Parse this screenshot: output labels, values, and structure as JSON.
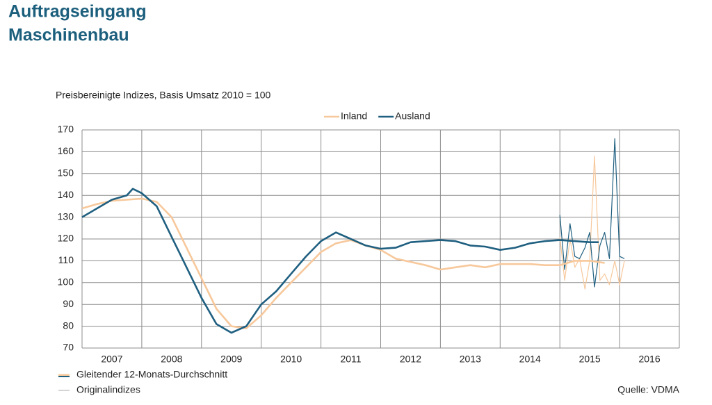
{
  "chart_data": {
    "type": "line",
    "title_lines": [
      "Auftragseingang",
      "Maschinenbau"
    ],
    "subtitle": "Preisbereinigte Indizes, Basis Umsatz 2010 = 100",
    "source": "Quelle: VDMA",
    "categories": [
      "2007",
      "2008",
      "2009",
      "2010",
      "2011",
      "2012",
      "2013",
      "2014",
      "2015",
      "2016"
    ],
    "xlim": [
      2007,
      2017
    ],
    "ylim": [
      70,
      170
    ],
    "yticks": [
      70,
      80,
      90,
      100,
      110,
      120,
      130,
      140,
      150,
      160,
      170
    ],
    "grid": true,
    "line_legend": [
      "Gleitender 12-Monats-Durchschnitt",
      "Originalindizes"
    ],
    "series": [
      {
        "name": "Inland",
        "color": "#f7c89b",
        "kind": "average",
        "x": [
          2007.0,
          2007.25,
          2007.5,
          2007.75,
          2008.0,
          2008.25,
          2008.5,
          2008.75,
          2009.0,
          2009.25,
          2009.5,
          2009.75,
          2010.0,
          2010.25,
          2010.5,
          2010.75,
          2011.0,
          2011.25,
          2011.5,
          2011.75,
          2012.0,
          2012.25,
          2012.5,
          2012.75,
          2013.0,
          2013.25,
          2013.5,
          2013.75,
          2014.0,
          2014.25,
          2014.5,
          2014.75,
          2015.0,
          2015.25,
          2015.5,
          2015.75
        ],
        "values": [
          134,
          136,
          137.5,
          138,
          138.5,
          137,
          130,
          116,
          102,
          88,
          80,
          79,
          85,
          93,
          100,
          107,
          114,
          118,
          119.5,
          117,
          115,
          111,
          109.5,
          108,
          106,
          107,
          108,
          107,
          108.5,
          108.5,
          108.5,
          108,
          108,
          110,
          110,
          109
        ]
      },
      {
        "name": "Ausland",
        "color": "#1f5f80",
        "kind": "average",
        "x": [
          2007.0,
          2007.25,
          2007.5,
          2007.75,
          2007.85,
          2008.0,
          2008.25,
          2008.5,
          2008.75,
          2009.0,
          2009.25,
          2009.5,
          2009.75,
          2010.0,
          2010.25,
          2010.5,
          2010.75,
          2011.0,
          2011.25,
          2011.5,
          2011.75,
          2012.0,
          2012.25,
          2012.5,
          2012.75,
          2013.0,
          2013.25,
          2013.5,
          2013.75,
          2014.0,
          2014.25,
          2014.5,
          2014.75,
          2015.0,
          2015.25,
          2015.5,
          2015.65
        ],
        "values": [
          130,
          134,
          138,
          140,
          143,
          141,
          135,
          121,
          107,
          93,
          81,
          77,
          80,
          90,
          96,
          104,
          112,
          119,
          123,
          120,
          117,
          115.5,
          116,
          118.5,
          119,
          119.5,
          119,
          117,
          116.5,
          115,
          116,
          118,
          119,
          119.5,
          119,
          118.5,
          118.5
        ]
      },
      {
        "color": "#f7c89b",
        "kind": "original",
        "x": [
          2015.0,
          2015.08,
          2015.17,
          2015.25,
          2015.33,
          2015.42,
          2015.5,
          2015.58,
          2015.67,
          2015.75,
          2015.83,
          2015.92,
          2016.0,
          2016.08
        ],
        "values": [
          121,
          101,
          120,
          107,
          111,
          97,
          110,
          158,
          101,
          104,
          99,
          110,
          99,
          110
        ]
      },
      {
        "color": "#1f5f80",
        "kind": "original",
        "x": [
          2015.0,
          2015.08,
          2015.17,
          2015.25,
          2015.33,
          2015.42,
          2015.5,
          2015.58,
          2015.67,
          2015.75,
          2015.83,
          2015.92,
          2016.0,
          2016.08
        ],
        "values": [
          131,
          106,
          127,
          112,
          111,
          116,
          123,
          98,
          117,
          123,
          111,
          166,
          112,
          111
        ]
      }
    ]
  }
}
